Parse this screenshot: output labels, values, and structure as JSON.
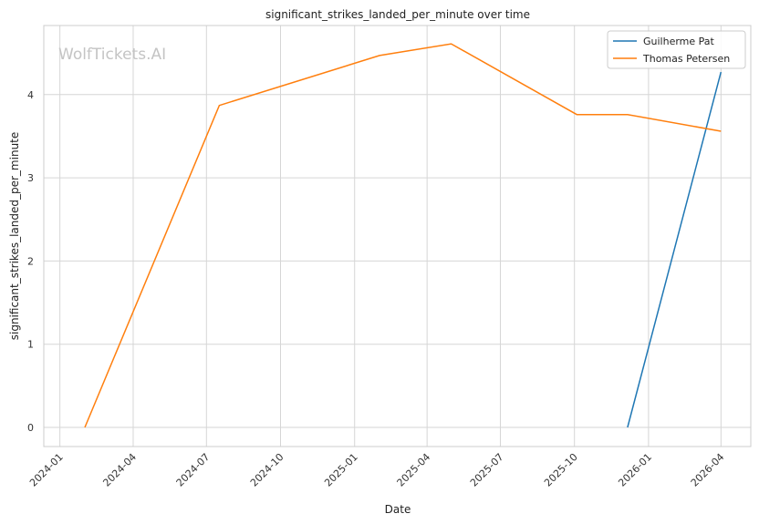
{
  "chart_data": {
    "type": "line",
    "title": "significant_strikes_landed_per_minute over time",
    "xlabel": "Date",
    "ylabel": "significant_strikes_landed_per_minute",
    "watermark": "WolfTickets.AI",
    "xlim": [
      "2023-12-12",
      "2026-05-08"
    ],
    "ylim": [
      -0.23,
      4.83
    ],
    "x_ticks": [
      "2024-01",
      "2024-04",
      "2024-07",
      "2024-10",
      "2025-01",
      "2025-04",
      "2025-07",
      "2025-10",
      "2026-01",
      "2026-04"
    ],
    "y_ticks": [
      0,
      1,
      2,
      3,
      4
    ],
    "grid": true,
    "legend_position": "top-right",
    "series": [
      {
        "name": "Guilherme Pat",
        "color": "#1f77b4",
        "points": [
          {
            "x": "2025-12-06",
            "y": 0
          },
          {
            "x": "2026-04-01",
            "y": 4.27
          }
        ]
      },
      {
        "name": "Thomas Petersen",
        "color": "#ff7f0e",
        "points": [
          {
            "x": "2024-02-01",
            "y": 0
          },
          {
            "x": "2024-07-17",
            "y": 3.87
          },
          {
            "x": "2025-02-01",
            "y": 4.47
          },
          {
            "x": "2025-05-01",
            "y": 4.61
          },
          {
            "x": "2025-10-04",
            "y": 3.76
          },
          {
            "x": "2025-12-06",
            "y": 3.76
          },
          {
            "x": "2026-04-01",
            "y": 3.56
          }
        ]
      }
    ]
  }
}
